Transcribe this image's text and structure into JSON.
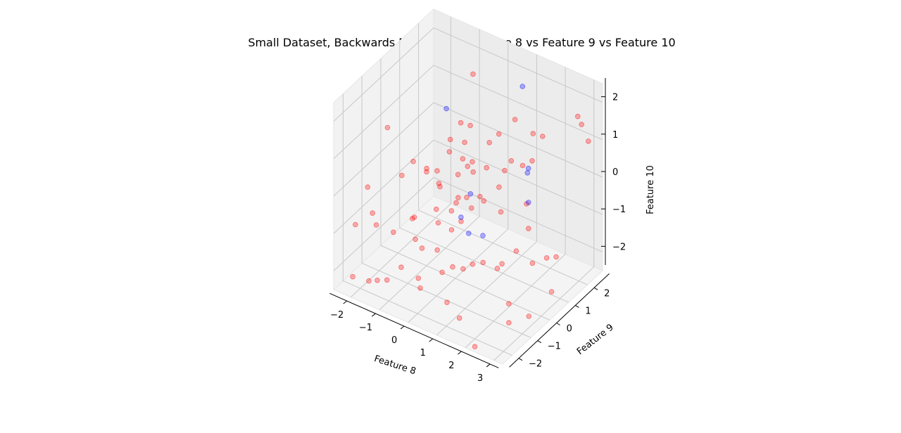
{
  "chart_data": {
    "type": "scatter",
    "projection": "3d",
    "title": "Small Dataset, Backwards Elimination: Feature 8 vs Feature 9 vs Feature 10",
    "xlabel": "Feature 8",
    "ylabel": "Feature 9",
    "zlabel": "Feature 10",
    "xlim": [
      -2.6,
      3.3
    ],
    "ylim": [
      -2.5,
      2.8
    ],
    "zlim": [
      -2.5,
      2.5
    ],
    "xticks": [
      "−2",
      "−1",
      "0",
      "1",
      "2",
      "3"
    ],
    "yticks": [
      "−2",
      "−1",
      "0",
      "1",
      "2"
    ],
    "zticks": [
      "−2",
      "−1",
      "0",
      "1",
      "2"
    ],
    "grid": true,
    "colors": {
      "class_red": "#ff0000",
      "class_blue": "#0000ff",
      "pane": "#f2f2f2",
      "grid": "#cccccc"
    },
    "series": [
      {
        "color": "#ff0000",
        "points": [
          [
            -0.3,
            1.4,
            2.2
          ],
          [
            -0.4,
            0.9,
            1.1
          ],
          [
            -2.3,
            -0.1,
            0.8
          ],
          [
            -0.6,
            0.6,
            0.4
          ],
          [
            -1.2,
            0.3,
            -0.2
          ],
          [
            -0.9,
            0.5,
            -0.5
          ],
          [
            -0.7,
            0.8,
            0.6
          ],
          [
            -1.3,
            -0.3,
            -1.2
          ],
          [
            -0.5,
            -0.2,
            0.3
          ],
          [
            0.0,
            0.5,
            0.9
          ],
          [
            0.3,
            0.2,
            0.5
          ],
          [
            -0.2,
            0.7,
            0.3
          ],
          [
            0.1,
            0.8,
            0.0
          ],
          [
            -0.1,
            0.3,
            0.1
          ],
          [
            0.2,
            0.6,
            0.4
          ],
          [
            0.4,
            1.2,
            0.7
          ],
          [
            0.6,
            1.4,
            0.9
          ],
          [
            0.9,
            1.8,
            1.2
          ],
          [
            0.5,
            0.9,
            0.2
          ],
          [
            0.3,
            -0.3,
            -0.1
          ],
          [
            0.1,
            -0.1,
            -0.4
          ],
          [
            0.6,
            0.4,
            -0.3
          ],
          [
            -0.4,
            -0.4,
            -0.6
          ],
          [
            -0.2,
            -0.6,
            -0.8
          ],
          [
            0.0,
            -0.2,
            -0.6
          ],
          [
            0.2,
            -0.5,
            -0.9
          ],
          [
            0.4,
            -0.3,
            -0.7
          ],
          [
            0.5,
            0.1,
            -0.5
          ],
          [
            0.8,
            0.3,
            -0.3
          ],
          [
            1.0,
            0.8,
            -0.1
          ],
          [
            1.1,
            1.3,
            0.4
          ],
          [
            1.0,
            1.1,
            0.2
          ],
          [
            1.2,
            0.6,
            -0.6
          ],
          [
            1.3,
            1.6,
            0.2
          ],
          [
            1.4,
            2.0,
            0.9
          ],
          [
            1.6,
            2.2,
            0.8
          ],
          [
            2.5,
            2.7,
            1.4
          ],
          [
            2.7,
            2.6,
            1.3
          ],
          [
            3.0,
            2.5,
            1.0
          ],
          [
            1.7,
            1.2,
            -0.5
          ],
          [
            1.9,
            1.0,
            -1.0
          ],
          [
            1.8,
            0.5,
            -1.4
          ],
          [
            1.5,
            0.2,
            -1.7
          ],
          [
            2.3,
            0.6,
            -1.6
          ],
          [
            2.6,
            0.9,
            -1.5
          ],
          [
            2.8,
            1.1,
            -1.5
          ],
          [
            2.2,
            -0.5,
            -2.2
          ],
          [
            2.4,
            -0.8,
            -2.5
          ],
          [
            2.9,
            -0.5,
            -2.3
          ],
          [
            3.1,
            0.4,
            -2.0
          ],
          [
            -0.8,
            -0.9,
            -1.3
          ],
          [
            -1.1,
            -0.5,
            -1.0
          ],
          [
            -1.5,
            -1.0,
            -1.3
          ],
          [
            -1.9,
            -1.3,
            -1.1
          ],
          [
            -2.1,
            -1.2,
            -0.9
          ],
          [
            -1.6,
            -0.4,
            -0.1
          ],
          [
            -1.4,
            -0.1,
            0.2
          ],
          [
            -1.0,
            0.0,
            0.1
          ],
          [
            -0.7,
            -0.7,
            -1.6
          ],
          [
            -0.5,
            -1.2,
            -2.1
          ],
          [
            -0.3,
            -1.4,
            -2.2
          ],
          [
            -0.1,
            -0.8,
            -1.4
          ],
          [
            0.2,
            -1.0,
            -1.8
          ],
          [
            0.5,
            -0.9,
            -1.6
          ],
          [
            0.8,
            -0.8,
            -1.6
          ],
          [
            1.0,
            -0.6,
            -1.5
          ],
          [
            1.3,
            -0.5,
            -1.4
          ],
          [
            1.6,
            -0.2,
            -1.6
          ],
          [
            -1.8,
            -1.4,
            -2.5
          ],
          [
            -2.4,
            -1.0,
            -0.4
          ],
          [
            -2.5,
            -1.5,
            -1.2
          ],
          [
            -1.7,
            -2.0,
            -2.2
          ],
          [
            -1.2,
            -1.8,
            -2.1
          ],
          [
            -0.9,
            -1.5,
            -1.8
          ],
          [
            -2.0,
            -2.4,
            -2.0
          ],
          [
            0.7,
            -1.5,
            -2.2
          ],
          [
            1.2,
            -1.6,
            -2.4
          ],
          [
            2.2,
            -2.3,
            -2.5
          ],
          [
            0.4,
            0.0,
            -0.2
          ],
          [
            -0.6,
            0.1,
            -0.3
          ],
          [
            1.5,
            1.8,
            0.3
          ],
          [
            -0.2,
            1.1,
            1.0
          ]
        ]
      },
      {
        "color": "#0000ff",
        "points": [
          [
            0.9,
            2.2,
            1.9
          ],
          [
            -1.1,
            1.2,
            1.1
          ],
          [
            1.7,
            1.3,
            0.4
          ],
          [
            1.9,
            1.0,
            -0.3
          ],
          [
            0.4,
            0.2,
            -0.2
          ],
          [
            0.2,
            0.0,
            -0.8
          ],
          [
            0.6,
            -0.2,
            -1.0
          ],
          [
            0.9,
            0.1,
            -1.1
          ],
          [
            1.6,
            1.4,
            0.2
          ]
        ]
      }
    ]
  }
}
